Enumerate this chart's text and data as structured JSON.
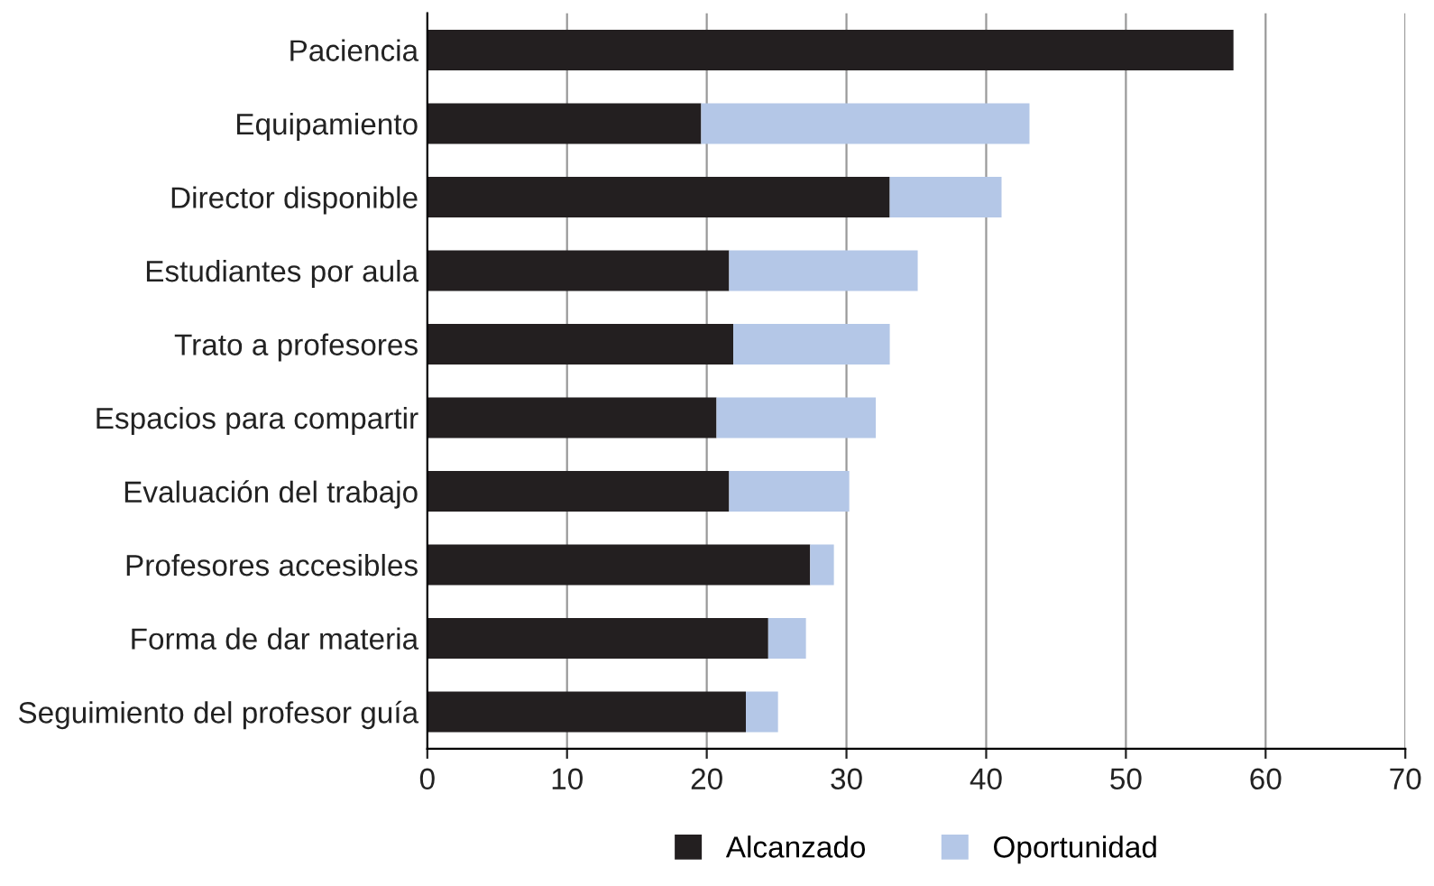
{
  "chart_data": {
    "type": "bar",
    "orientation": "horizontal",
    "stacked": true,
    "categories": [
      "Paciencia",
      "Equipamiento",
      "Director disponible",
      "Estudiantes por aula",
      "Trato a profesores",
      "Espacios para compartir",
      "Evaluación del trabajo",
      "Profesores accesibles",
      "Forma de dar materia",
      "Seguimiento del profesor guía"
    ],
    "series": [
      {
        "name": "Alcanzado",
        "color": "#231f20",
        "values": [
          57.7,
          19.6,
          33.1,
          21.6,
          21.9,
          20.7,
          21.6,
          27.4,
          24.4,
          22.8
        ]
      },
      {
        "name": "Oportunidad",
        "color": "#b4c7e7",
        "values": [
          0,
          23.5,
          8.0,
          13.5,
          11.2,
          11.4,
          8.6,
          1.7,
          2.7,
          2.3
        ]
      }
    ],
    "xlim": [
      0,
      70
    ],
    "xticks": [
      0,
      10,
      20,
      30,
      40,
      50,
      60,
      70
    ],
    "grid": "x",
    "legend": "bottom"
  }
}
